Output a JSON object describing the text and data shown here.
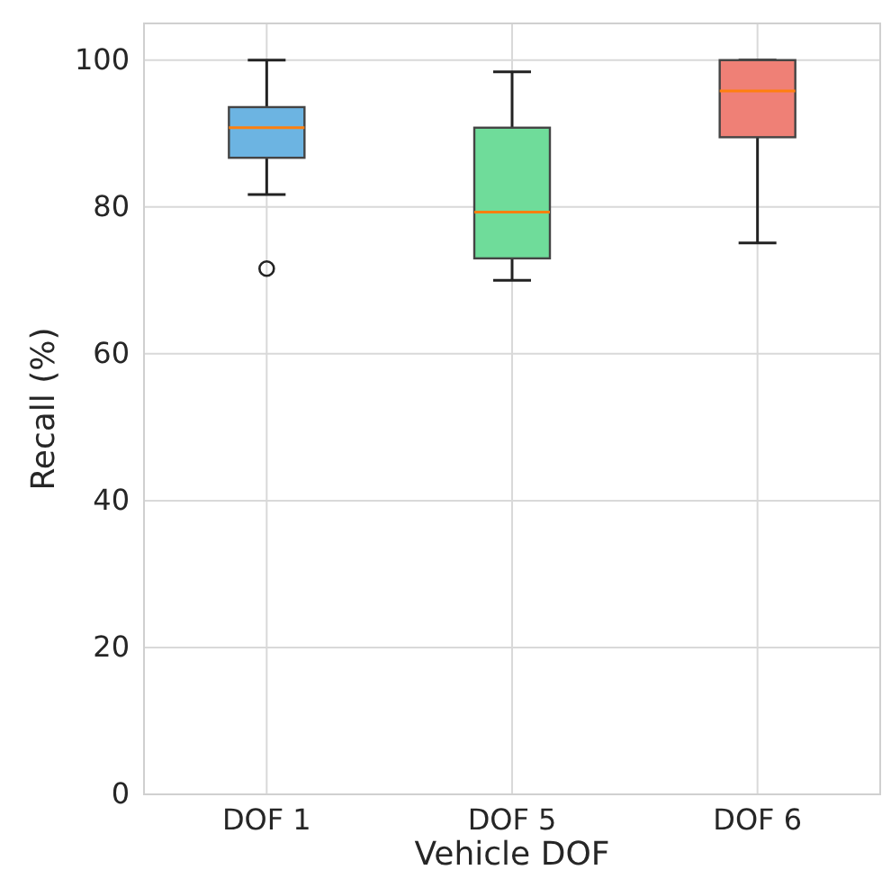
{
  "chart_data": {
    "type": "box",
    "xlabel": "Vehicle DOF",
    "ylabel": "Recall (%)",
    "categories": [
      "DOF 1",
      "DOF 5",
      "DOF 6"
    ],
    "colors": [
      "#6cb4e2",
      "#6fdc9a",
      "#ef8076"
    ],
    "boxes": [
      {
        "low": 81.7,
        "q1": 86.7,
        "median": 90.8,
        "q3": 93.6,
        "high": 100,
        "outliers": [
          71.6
        ]
      },
      {
        "low": 70.0,
        "q1": 73.0,
        "median": 79.3,
        "q3": 90.8,
        "high": 98.4
      },
      {
        "low": 75.1,
        "q1": 89.5,
        "median": 95.8,
        "q3": 100,
        "high": 100
      }
    ],
    "ylim": [
      0,
      105
    ],
    "yticks": [
      0,
      20,
      40,
      60,
      80,
      100
    ],
    "grid": true
  }
}
